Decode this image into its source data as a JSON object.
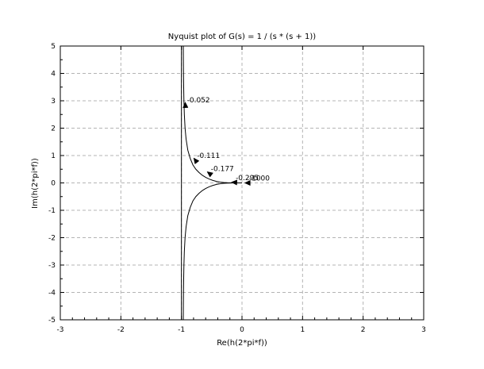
{
  "chart_data": {
    "type": "line",
    "title": "Nyquist plot of G(s) = 1 / (s * (s + 1))",
    "xlabel": "Re(h(2*pi*f))",
    "ylabel": "Im(h(2*pi*f))",
    "xlim": [
      -3,
      3
    ],
    "ylim": [
      -5,
      5
    ],
    "xticks": [
      -3,
      -2,
      -1,
      0,
      1,
      2,
      3
    ],
    "yticks": [
      -5,
      -4,
      -3,
      -2,
      -1,
      0,
      1,
      2,
      3,
      4,
      5
    ],
    "grid": true,
    "asymptote_x": -1,
    "series": [
      {
        "branch": "upper",
        "x": [
          -0.969,
          -0.968,
          -0.966,
          -0.963,
          -0.959,
          -0.952,
          -0.94,
          -0.923,
          -0.895,
          -0.856,
          -0.811,
          -0.762,
          -0.71,
          -0.656,
          -0.598,
          -0.54,
          -0.48,
          -0.42,
          -0.36,
          -0.3,
          -0.24,
          -0.18,
          -0.12,
          -0.06,
          0.0
        ],
        "y": [
          5.0,
          4.5,
          4.0,
          3.5,
          3.0,
          2.5,
          2.0,
          1.6,
          1.2,
          0.9,
          0.66,
          0.5,
          0.38,
          0.28,
          0.2,
          0.14,
          0.09,
          0.055,
          0.03,
          0.015,
          0.007,
          0.003,
          0.001,
          0.0003,
          0.0
        ]
      },
      {
        "branch": "lower",
        "x": [
          -0.969,
          -0.968,
          -0.966,
          -0.963,
          -0.959,
          -0.952,
          -0.94,
          -0.923,
          -0.895,
          -0.856,
          -0.811,
          -0.762,
          -0.71,
          -0.656,
          -0.598,
          -0.54,
          -0.48,
          -0.42,
          -0.36,
          -0.3,
          -0.24,
          -0.18,
          -0.12,
          -0.06,
          0.0
        ],
        "y": [
          -5.0,
          -4.5,
          -4.0,
          -3.5,
          -3.0,
          -2.5,
          -2.0,
          -1.6,
          -1.2,
          -0.9,
          -0.66,
          -0.5,
          -0.38,
          -0.28,
          -0.2,
          -0.14,
          -0.09,
          -0.055,
          -0.03,
          -0.015,
          -0.007,
          -0.003,
          -0.001,
          -0.0003,
          0.0
        ]
      }
    ],
    "annotations": [
      {
        "label": "-0.052",
        "x": -0.935,
        "y": 2.85,
        "dir": [
          -0.05,
          1
        ]
      },
      {
        "label": "-0.111",
        "x": -0.77,
        "y": 0.83,
        "dir": [
          -0.6,
          0.8
        ]
      },
      {
        "label": "-0.177",
        "x": -0.54,
        "y": 0.35,
        "dir": [
          -0.8,
          0.6
        ]
      },
      {
        "label": "-0.295",
        "x": -0.13,
        "y": 0.02,
        "dir": [
          -1,
          0.05
        ]
      },
      {
        "label": "-1000",
        "x": 0.09,
        "y": 0.0,
        "dir": [
          -1,
          0
        ]
      }
    ]
  }
}
